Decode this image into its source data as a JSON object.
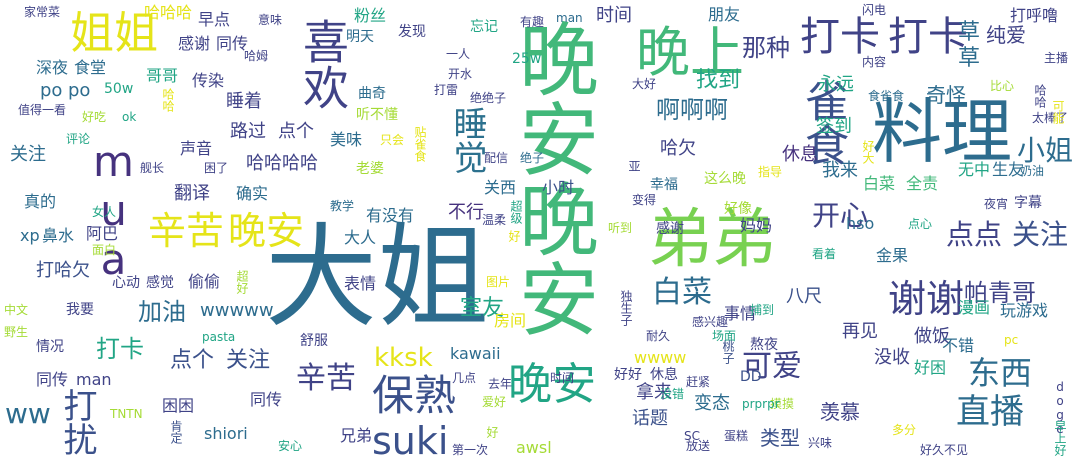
{
  "words": [
    {
      "text": "大姐",
      "color": "#2d6c8e"
    },
    {
      "text": "晚安晚安",
      "color": "#42b87a"
    },
    {
      "text": "弟弟",
      "color": "#78d151"
    },
    {
      "text": "料理",
      "color": "#2d6c8e"
    },
    {
      "text": "晚上",
      "color": "#42b87a"
    },
    {
      "text": "喜欢",
      "color": "#404387"
    },
    {
      "text": "晚安",
      "color": "#21a585"
    },
    {
      "text": "姐姐",
      "color": "#e5e419"
    },
    {
      "text": "打卡",
      "color": "#404387"
    },
    {
      "text": "打卡",
      "color": "#404387"
    },
    {
      "text": "辛苦",
      "color": "#e5e419"
    },
    {
      "text": "晚安",
      "color": "#e5e419"
    },
    {
      "text": "mua",
      "color": "#46327e"
    },
    {
      "text": "雀食",
      "color": "#3b518b"
    },
    {
      "text": "谢谢",
      "color": "#404387"
    },
    {
      "text": "保熟",
      "color": "#3b518b"
    },
    {
      "text": "suki",
      "color": "#3b518b"
    },
    {
      "text": "直播",
      "color": "#2d6c8e"
    },
    {
      "text": "东西",
      "color": "#2d6c8e"
    },
    {
      "text": "可爱",
      "color": "#404387"
    },
    {
      "text": "辛苦",
      "color": "#404387"
    },
    {
      "text": "白菜",
      "color": "#2d6c8e"
    },
    {
      "text": "睡觉",
      "color": "#2c718e"
    },
    {
      "text": "点点",
      "color": "#404387"
    },
    {
      "text": "关注",
      "color": "#3b518b"
    },
    {
      "text": "小姐",
      "color": "#2d6c8e"
    },
    {
      "text": "开心",
      "color": "#404387"
    },
    {
      "text": "ww",
      "color": "#2d6c8e"
    },
    {
      "text": "打扰",
      "color": "#3b518b"
    },
    {
      "text": "kksk",
      "color": "#e5e419"
    },
    {
      "text": "啊啊啊",
      "color": "#2d6c8e"
    },
    {
      "text": "那种",
      "color": "#404387"
    },
    {
      "text": "找到",
      "color": "#21a585"
    },
    {
      "text": "帕青哥",
      "color": "#404387"
    },
    {
      "text": "加油",
      "color": "#2d6c8e"
    },
    {
      "text": "打卡",
      "color": "#21a585"
    },
    {
      "text": "点个",
      "color": "#3b518b"
    },
    {
      "text": "关注",
      "color": "#3b518b"
    },
    {
      "text": "室友",
      "color": "#21a585"
    },
    {
      "text": "wwwww",
      "color": "#2d6c8e"
    },
    {
      "text": "草",
      "color": "#2d6c8e"
    },
    {
      "text": "草",
      "color": "#2d6c8e"
    },
    {
      "text": "纯爱",
      "color": "#404387"
    },
    {
      "text": "奇怪",
      "color": "#2d6c8e"
    },
    {
      "text": "永远",
      "color": "#21a585"
    },
    {
      "text": "签到",
      "color": "#21a585"
    },
    {
      "text": "休息",
      "color": "#46327e"
    },
    {
      "text": "我来",
      "color": "#2d6c8e"
    },
    {
      "text": "白菜",
      "color": "#42b87a"
    },
    {
      "text": "全责",
      "color": "#42b87a"
    },
    {
      "text": "无中",
      "color": "#21a585"
    },
    {
      "text": "生友",
      "color": "#2d6c8e"
    },
    {
      "text": "八尺",
      "color": "#3b518b"
    },
    {
      "text": "再见",
      "color": "#404387"
    },
    {
      "text": "做饭",
      "color": "#404387"
    },
    {
      "text": "漫画",
      "color": "#21a585"
    },
    {
      "text": "玩游戏",
      "color": "#2d6c8e"
    },
    {
      "text": "没收",
      "color": "#404387"
    },
    {
      "text": "不错",
      "color": "#2d6c8e"
    },
    {
      "text": "好困",
      "color": "#21a585"
    },
    {
      "text": "羡慕",
      "color": "#404387"
    },
    {
      "text": "类型",
      "color": "#3b518b"
    },
    {
      "text": "话题",
      "color": "#3b518b"
    },
    {
      "text": "拿来",
      "color": "#404387"
    },
    {
      "text": "变态",
      "color": "#2d6c8e"
    },
    {
      "text": "兄弟",
      "color": "#404387"
    },
    {
      "text": "awsl",
      "color": "#a5db36"
    },
    {
      "text": "shiori",
      "color": "#2d6c8e"
    },
    {
      "text": "同传",
      "color": "#404387"
    },
    {
      "text": "困困",
      "color": "#404387"
    },
    {
      "text": "表情",
      "color": "#404387"
    },
    {
      "text": "房间",
      "color": "#e5e419"
    },
    {
      "text": "kawaii",
      "color": "#2d6c8e"
    },
    {
      "text": "不行",
      "color": "#46327e"
    },
    {
      "text": "有没有",
      "color": "#2d6c8e"
    },
    {
      "text": "大人",
      "color": "#2d6c8e"
    },
    {
      "text": "关西",
      "color": "#2d6c8e"
    },
    {
      "text": "偷偷",
      "color": "#404387"
    },
    {
      "text": "打哈欠",
      "color": "#3b518b"
    },
    {
      "text": "翻译",
      "color": "#404387"
    },
    {
      "text": "确实",
      "color": "#2d6c8e"
    },
    {
      "text": "哈哈哈哈",
      "color": "#404387"
    },
    {
      "text": "声音",
      "color": "#404387"
    },
    {
      "text": "美味",
      "color": "#2d6c8e"
    },
    {
      "text": "路过",
      "color": "#404387"
    },
    {
      "text": "点个",
      "color": "#404387"
    },
    {
      "text": "睡着",
      "color": "#404387"
    },
    {
      "text": "传染",
      "color": "#404387"
    },
    {
      "text": "哥哥",
      "color": "#21a585"
    },
    {
      "text": "关注",
      "color": "#2d6c8e"
    },
    {
      "text": "po",
      "color": "#2d6c8e"
    },
    {
      "text": "po",
      "color": "#2d6c8e"
    },
    {
      "text": "深夜",
      "color": "#2d6c8e"
    },
    {
      "text": "食堂",
      "color": "#2d6c8e"
    },
    {
      "text": "粉丝",
      "color": "#21a585"
    },
    {
      "text": "感谢",
      "color": "#404387"
    },
    {
      "text": "同传",
      "color": "#404387"
    },
    {
      "text": "早点",
      "color": "#404387"
    },
    {
      "text": "哈哈哈",
      "color": "#e5e419"
    },
    {
      "text": "时间",
      "color": "#404387"
    },
    {
      "text": "朋友",
      "color": "#2d6c8e"
    },
    {
      "text": "打呼噜",
      "color": "#404387"
    },
    {
      "text": "哈欠",
      "color": "#404387"
    },
    {
      "text": "小时",
      "color": "#3b518b"
    },
    {
      "text": "真的",
      "color": "#2d6c8e"
    },
    {
      "text": "xp",
      "color": "#2d6c8e"
    },
    {
      "text": "鼻水",
      "color": "#2d6c8e"
    },
    {
      "text": "阿巴",
      "color": "#404387"
    },
    {
      "text": "同传",
      "color": "#404387"
    },
    {
      "text": "man",
      "color": "#404387"
    },
    {
      "text": "wwww",
      "color": "#e5e419"
    },
    {
      "text": "事情",
      "color": "#404387"
    },
    {
      "text": "金果",
      "color": "#2d6c8e"
    },
    {
      "text": "妈妈",
      "color": "#404387"
    },
    {
      "text": "hso",
      "color": "#2d6c8e"
    },
    {
      "text": "字幕",
      "color": "#404387"
    },
    {
      "text": "奶油",
      "color": "#2d6c8e"
    },
    {
      "text": "这么晚",
      "color": "#a5db36"
    },
    {
      "text": "好像",
      "color": "#a5db36"
    },
    {
      "text": "幸福",
      "color": "#2d6c8e"
    },
    {
      "text": "发现",
      "color": "#404387"
    },
    {
      "text": "明天",
      "color": "#2d6c8e"
    },
    {
      "text": "曲奇",
      "color": "#2d6c8e"
    },
    {
      "text": "听不懂",
      "color": "#a5db36"
    },
    {
      "text": "老婆",
      "color": "#a5db36"
    },
    {
      "text": "忘记",
      "color": "#21a585"
    },
    {
      "text": "有趣",
      "color": "#404387"
    },
    {
      "text": "man",
      "color": "#2d6c8e"
    },
    {
      "text": "25w",
      "color": "#21a585"
    },
    {
      "text": "50w",
      "color": "#21a585"
    },
    {
      "text": "好好",
      "color": "#404387"
    },
    {
      "text": "休息",
      "color": "#404387"
    },
    {
      "text": "DD",
      "color": "#3b518b"
    },
    {
      "text": "熬夜",
      "color": "#404387"
    },
    {
      "text": "感谢",
      "color": "#404387"
    },
    {
      "text": "我要",
      "color": "#404387"
    },
    {
      "text": "心动",
      "color": "#404387"
    },
    {
      "text": "感觉",
      "color": "#404387"
    },
    {
      "text": "情况",
      "color": "#404387"
    },
    {
      "text": "舒服",
      "color": "#404387"
    },
    {
      "text": "家常菜",
      "color": "#404387"
    },
    {
      "text": "意味",
      "color": "#404387"
    },
    {
      "text": "闪电",
      "color": "#404387"
    },
    {
      "text": "主播",
      "color": "#404387"
    },
    {
      "text": "内容",
      "color": "#404387"
    },
    {
      "text": "比心",
      "color": "#a5db36"
    },
    {
      "text": "太棒了",
      "color": "#404387"
    },
    {
      "text": "食雀食",
      "color": "#2d6c8e"
    },
    {
      "text": "大好",
      "color": "#404387"
    },
    {
      "text": "绝绝子",
      "color": "#404387"
    },
    {
      "text": "开水",
      "color": "#404387"
    },
    {
      "text": "一人",
      "color": "#404387"
    },
    {
      "text": "打雷",
      "color": "#404387"
    },
    {
      "text": "哈姆",
      "color": "#404387"
    },
    {
      "text": "值得一看",
      "color": "#404387"
    },
    {
      "text": "好吃",
      "color": "#a5db36"
    },
    {
      "text": "ok",
      "color": "#21a585"
    },
    {
      "text": "评论",
      "color": "#21a585"
    },
    {
      "text": "舰长",
      "color": "#404387"
    },
    {
      "text": "困了",
      "color": "#404387"
    },
    {
      "text": "只会",
      "color": "#e5e419"
    },
    {
      "text": "配信",
      "color": "#404387"
    },
    {
      "text": "绝子",
      "color": "#2d6c8e"
    },
    {
      "text": "指导",
      "color": "#e5e419"
    },
    {
      "text": "女人",
      "color": "#21a585"
    },
    {
      "text": "面白",
      "color": "#a5db36"
    },
    {
      "text": "教学",
      "color": "#2d6c8e"
    },
    {
      "text": "温柔",
      "color": "#404387"
    },
    {
      "text": "变得",
      "color": "#404387"
    },
    {
      "text": "听到",
      "color": "#a5db36"
    },
    {
      "text": "点心",
      "color": "#21a585"
    },
    {
      "text": "夜宵",
      "color": "#404387"
    },
    {
      "text": "看着",
      "color": "#21a585"
    },
    {
      "text": "中文",
      "color": "#a5db36"
    },
    {
      "text": "野生",
      "color": "#a5db36"
    },
    {
      "text": "pasta",
      "color": "#21a585"
    },
    {
      "text": "图片",
      "color": "#e5e419"
    },
    {
      "text": "耐久",
      "color": "#404387"
    },
    {
      "text": "感兴趣",
      "color": "#404387"
    },
    {
      "text": "场面",
      "color": "#21a585"
    },
    {
      "text": "捕到",
      "color": "#21a585"
    },
    {
      "text": "pc",
      "color": "#e5e419"
    },
    {
      "text": "几点",
      "color": "#404387"
    },
    {
      "text": "去年",
      "color": "#404387"
    },
    {
      "text": "爱好",
      "color": "#a5db36"
    },
    {
      "text": "时间",
      "color": "#404387"
    },
    {
      "text": "赶紧",
      "color": "#404387"
    },
    {
      "text": "没错",
      "color": "#21a585"
    },
    {
      "text": "SC",
      "color": "#404387"
    },
    {
      "text": "摸摸",
      "color": "#a5db36"
    },
    {
      "text": "prprpr",
      "color": "#21a585"
    },
    {
      "text": "TNTN",
      "color": "#a5db36"
    },
    {
      "text": "安心",
      "color": "#21a585"
    },
    {
      "text": "第一次",
      "color": "#404387"
    },
    {
      "text": "放送",
      "color": "#404387"
    },
    {
      "text": "蛋糕",
      "color": "#404387"
    },
    {
      "text": "兴味",
      "color": "#404387"
    },
    {
      "text": "多分",
      "color": "#e5e419"
    },
    {
      "text": "好久不见",
      "color": "#404387"
    },
    {
      "text": "肯定",
      "color": "#3b518b"
    },
    {
      "text": "哈哈",
      "color": "#e5e419"
    },
    {
      "text": "贴雀食",
      "color": "#e5e419"
    },
    {
      "text": "独生子",
      "color": "#404387"
    },
    {
      "text": "桃子",
      "color": "#3b518b"
    },
    {
      "text": "可能",
      "color": "#e5e419"
    },
    {
      "text": "超好",
      "color": "#a5db36"
    },
    {
      "text": "亚",
      "color": "#a5db36"
    },
    {
      "text": "doge",
      "color": "#404387"
    },
    {
      "text": "早上好",
      "color": "#404387"
    },
    {
      "text": "哈哈",
      "color": "#21a585"
    },
    {
      "text": "超级",
      "color": "#404387"
    },
    {
      "text": "好",
      "color": "#21a585"
    },
    {
      "text": "好大",
      "color": "#e5e419"
    },
    {
      "text": "好",
      "color": "#e5e419"
    },
    {
      "text": "好好",
      "color": "#a5db36"
    }
  ]
}
